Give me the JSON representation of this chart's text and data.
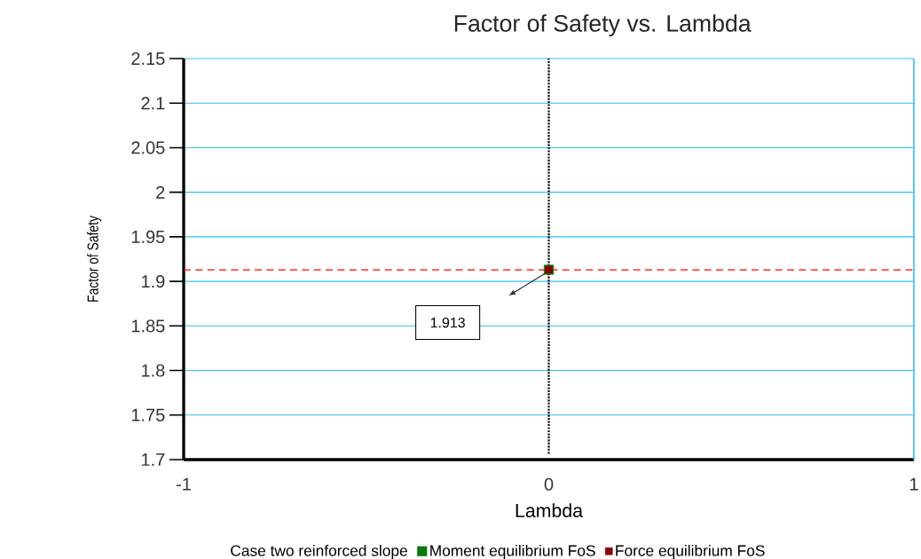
{
  "chart_data": {
    "type": "scatter",
    "title": "Factor of Safety vs. Lambda",
    "xlabel": "Lambda",
    "ylabel": "Factor of Safety",
    "legend_title": "Case two reinforced slope",
    "x": [
      0
    ],
    "series": [
      {
        "name": "Moment equilibrium FoS",
        "color": "#0a7a0a",
        "values": [
          1.913
        ]
      },
      {
        "name": "Force equilibrium FoS",
        "color": "#8b0000",
        "values": [
          1.913
        ]
      }
    ],
    "xlim": [
      -1,
      1
    ],
    "xticks": [
      -1,
      0,
      1
    ],
    "ylim": [
      1.7,
      2.15
    ],
    "yticks": [
      1.7,
      1.75,
      1.8,
      1.85,
      1.9,
      1.95,
      2,
      2.05,
      2.1,
      2.15
    ],
    "ref_lines": [
      {
        "axis": "x",
        "value": 0,
        "color": "#000000",
        "line_style": "dotted"
      },
      {
        "axis": "y",
        "value": 1.913,
        "color": "#ff0000",
        "line_style": "dashed"
      }
    ],
    "annotations": [
      "1.913"
    ],
    "grid": "y",
    "legend": "bottom",
    "marker": "square"
  }
}
